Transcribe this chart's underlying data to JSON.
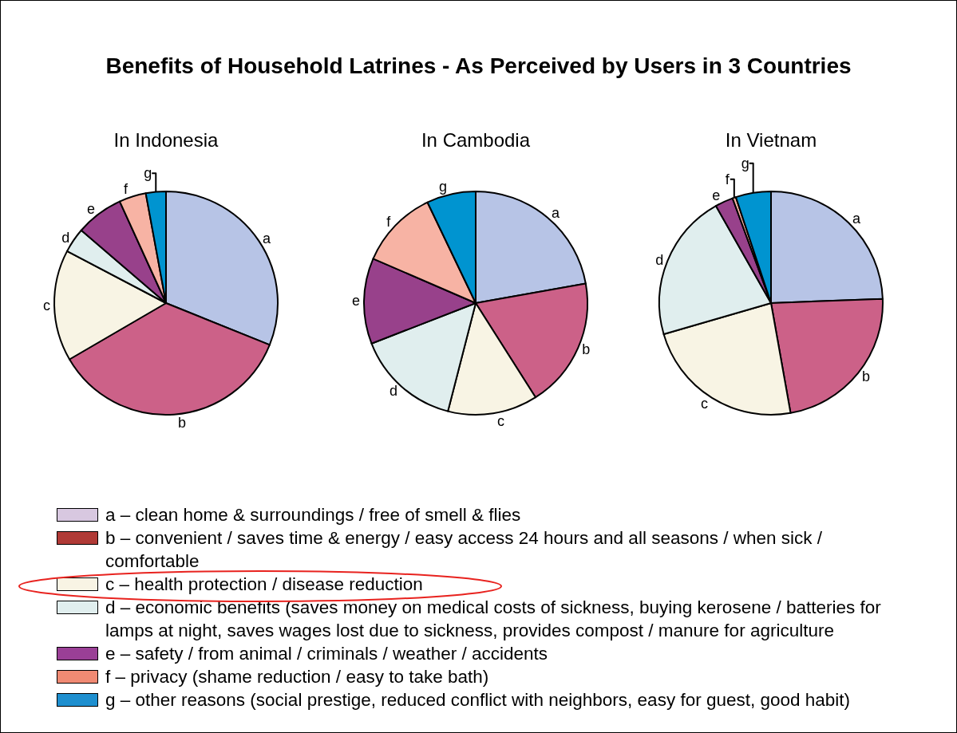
{
  "chart_data": [
    {
      "type": "pie",
      "title": "In Indonesia",
      "categories": [
        "a",
        "b",
        "c",
        "d",
        "e",
        "f",
        "g"
      ],
      "values": [
        31.1,
        35.5,
        16.1,
        3.6,
        6.9,
        3.9,
        2.9
      ],
      "colors": [
        "#b7c4e6",
        "#cc6188",
        "#f8f4e4",
        "#e0eeee",
        "#98418b",
        "#f7b3a4",
        "#0094d0"
      ]
    },
    {
      "type": "pie",
      "title": "In Cambodia",
      "categories": [
        "a",
        "b",
        "c",
        "d",
        "e",
        "f",
        "g"
      ],
      "values": [
        22.2,
        18.8,
        13.0,
        15.1,
        12.4,
        11.4,
        7.1
      ],
      "colors": [
        "#b7c4e6",
        "#cc6188",
        "#f8f4e4",
        "#e0eeee",
        "#98418b",
        "#f7b3a4",
        "#0094d0"
      ]
    },
    {
      "type": "pie",
      "title": "In Vietnam",
      "categories": [
        "a",
        "b",
        "c",
        "d",
        "e",
        "f",
        "g"
      ],
      "values": [
        24.4,
        22.8,
        23.3,
        21.3,
        2.6,
        0.5,
        5.1
      ],
      "colors": [
        "#b7c4e6",
        "#cc6188",
        "#f8f4e4",
        "#e0eeee",
        "#98418b",
        "#f7b3a4",
        "#0094d0"
      ]
    },
    {
      "type": "other",
      "title": "Benefits of Household Latrines - As Perceived by Users in 3 Countries",
      "annotations": [
        "a – clean home & surroundings / free of smell & flies",
        "b – convenient / saves time & energy / easy access 24 hours and all seasons / when sick / comfortable",
        "c – health protection / disease reduction",
        "d – economic benefits (saves money on medical costs of sickness, buying kerosene / batteries for lamps at night, saves wages lost due to sickness, provides compost / manure for agriculture",
        "e – safety / from animal / criminals / weather / accidents",
        "f – privacy (shame reduction / easy to take bath)",
        "g – other reasons (social prestige, reduced conflict with neighbors, easy for guest, good habit)"
      ],
      "colors": [
        "#d8c8e0",
        "#b03a36",
        "#f8f4e4",
        "#e0eeee",
        "#9a3f96",
        "#f08a73",
        "#1e8fcf"
      ]
    }
  ]
}
